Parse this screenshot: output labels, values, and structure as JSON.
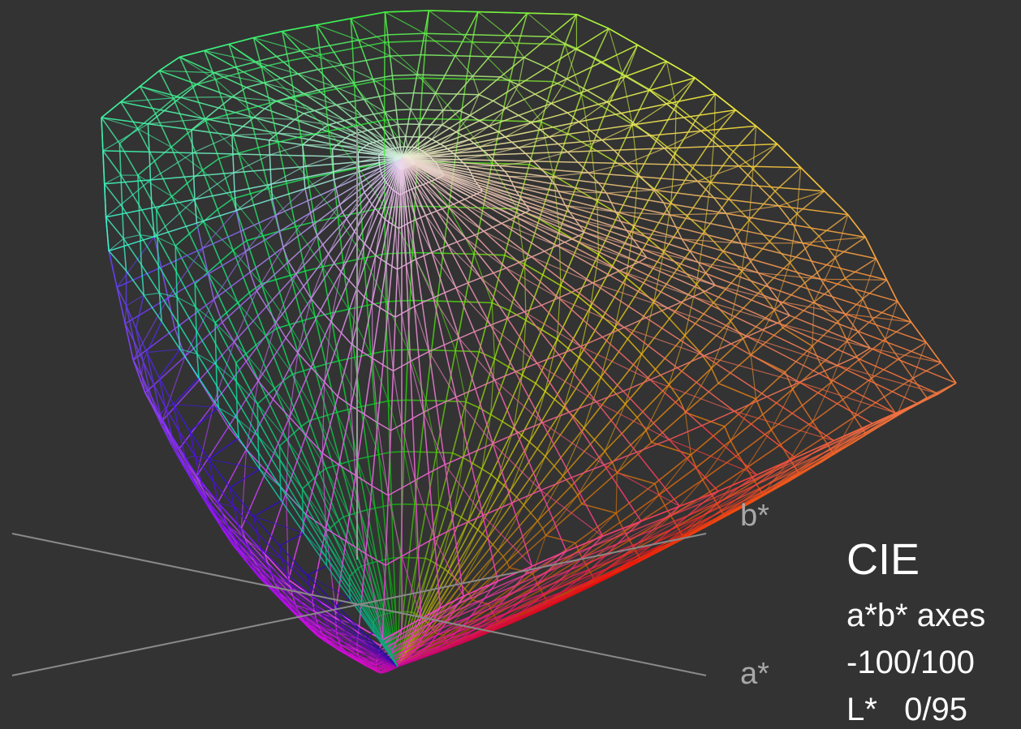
{
  "axes": {
    "b": "b*",
    "a": "a*"
  },
  "legend": {
    "title": "CIE",
    "lines": [
      "a*b* axes",
      "-100/100",
      "L*   0/95"
    ]
  }
}
